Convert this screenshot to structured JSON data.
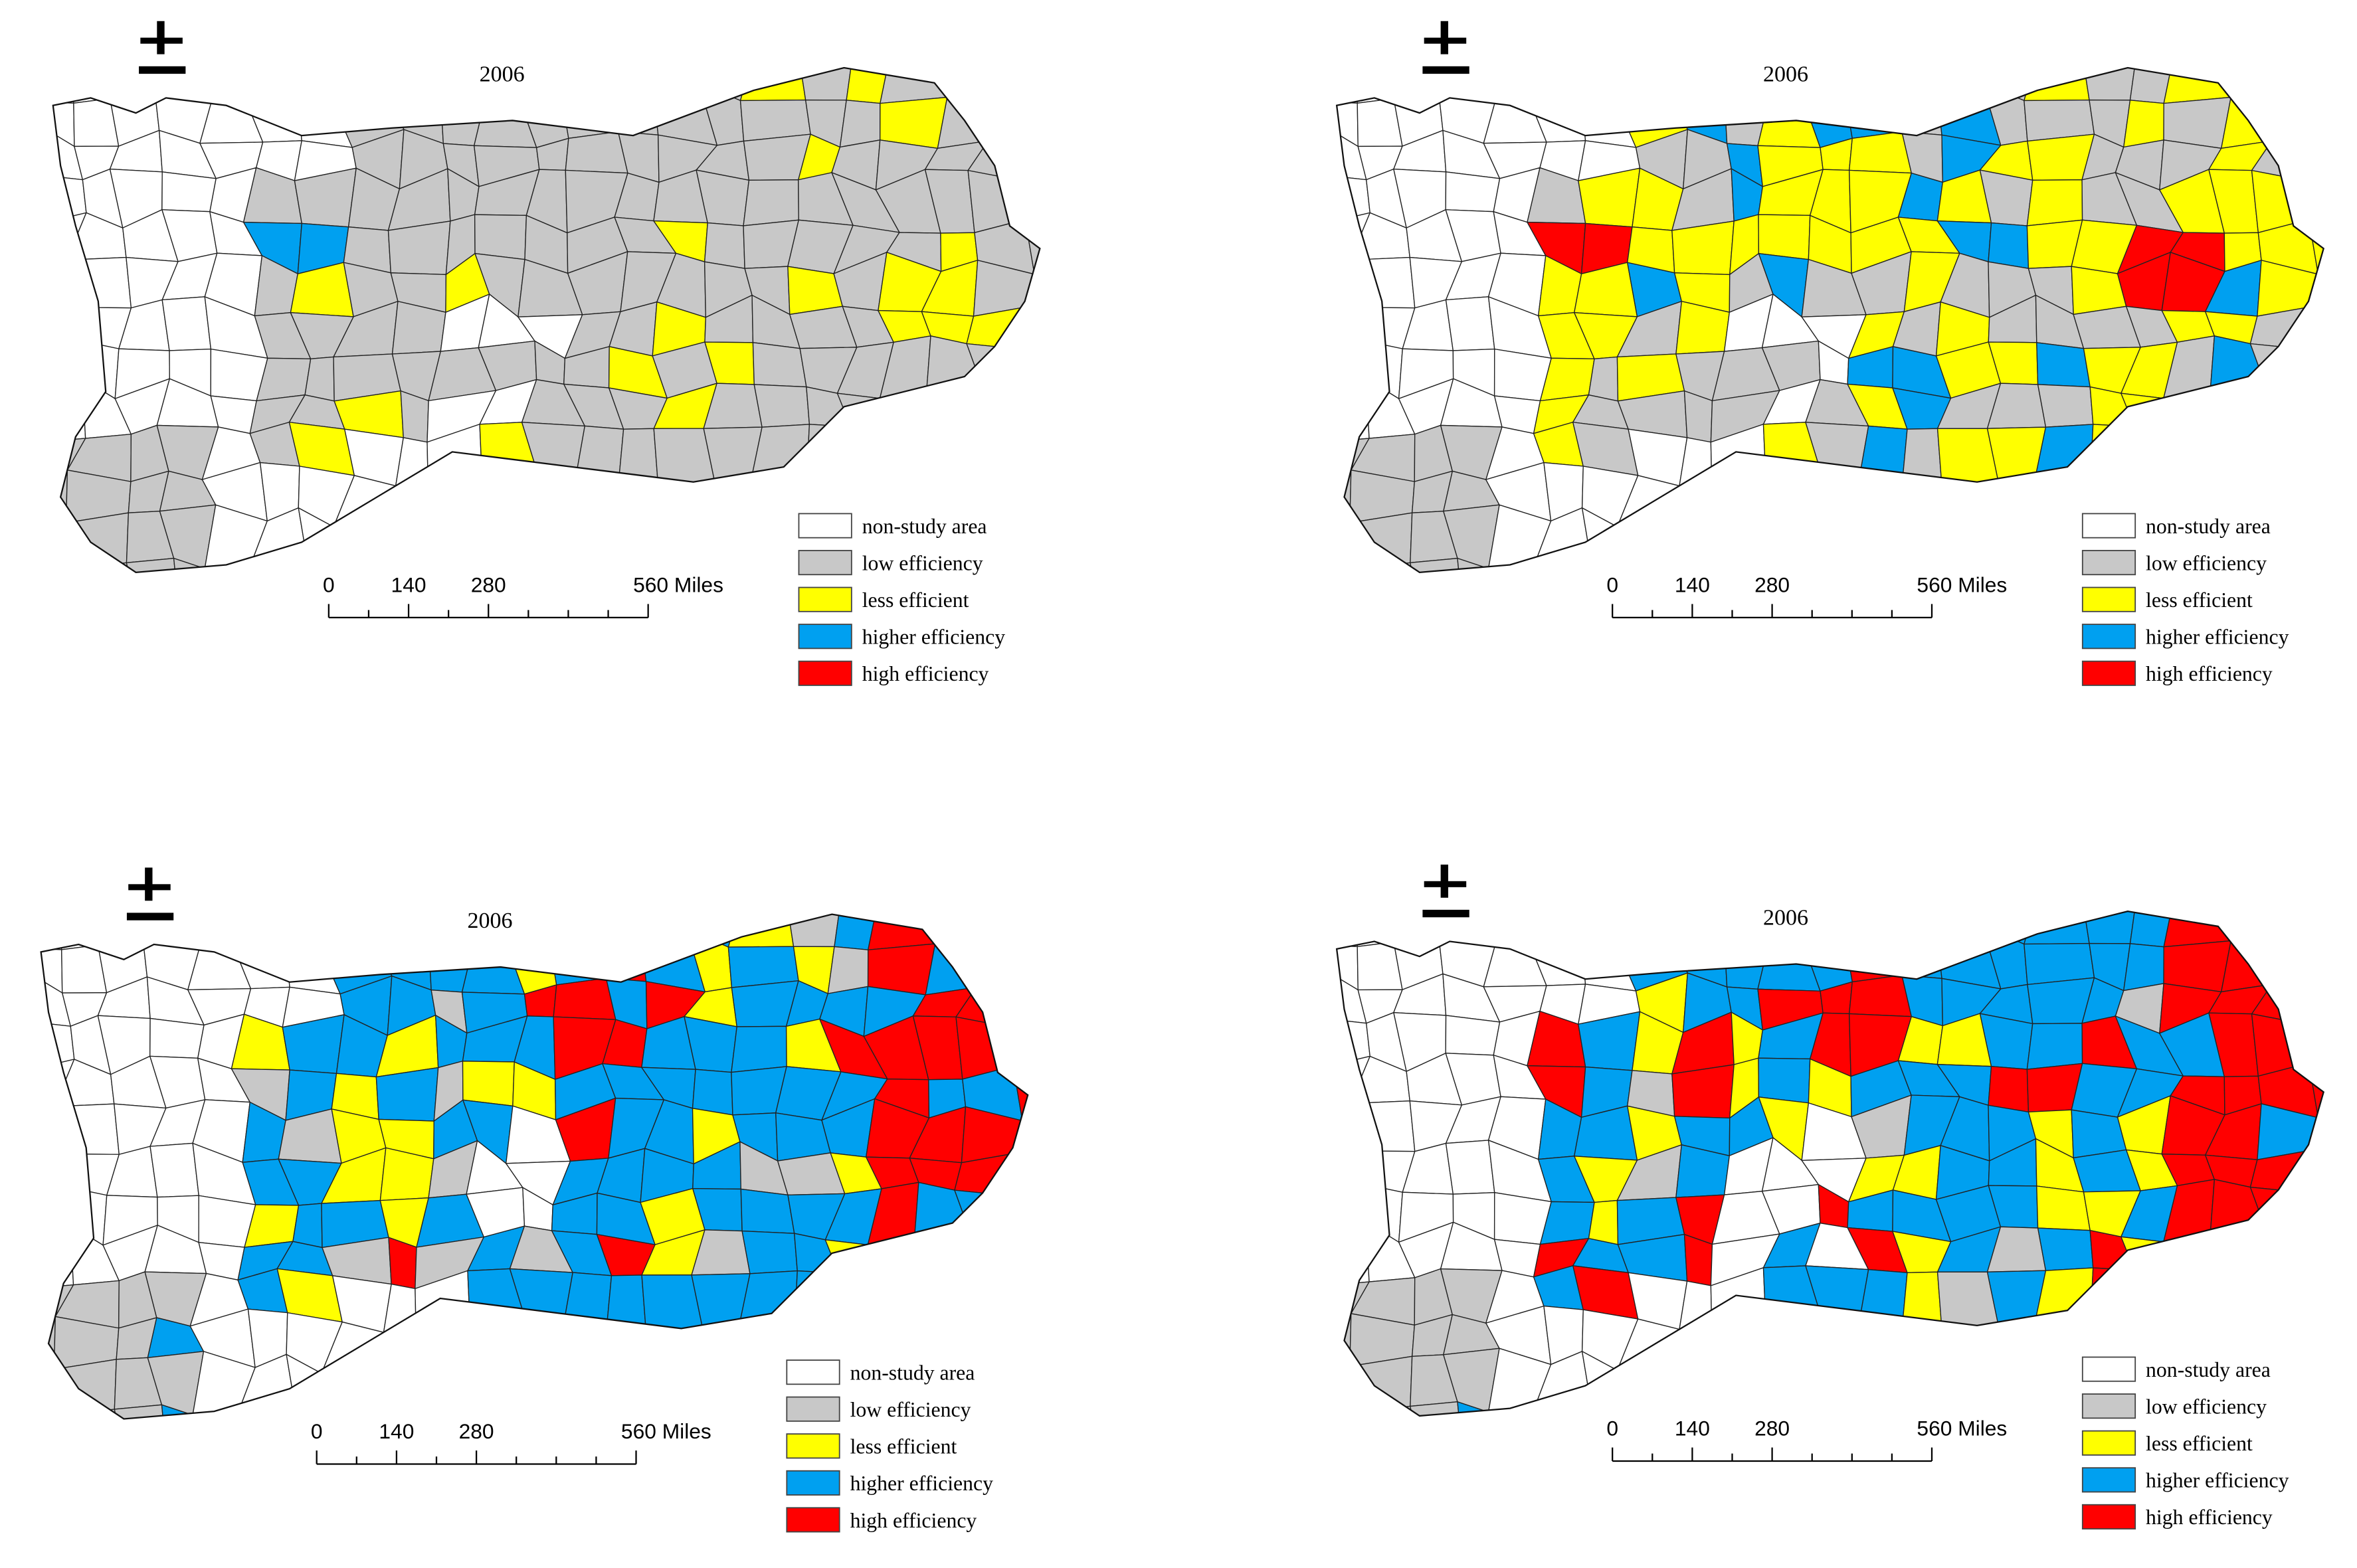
{
  "panels": [
    {
      "year": "2006",
      "legend": [
        "non-study area",
        "low efficiency",
        "less efficient",
        "higher efficiency",
        "high efficiency"
      ],
      "scale": [
        "0",
        "140",
        "280",
        "560 Miles"
      ]
    },
    {
      "year": "2006",
      "legend": [
        "non-study area",
        "low efficiency",
        "less efficient",
        "higher efficiency",
        "high efficiency"
      ],
      "scale": [
        "0",
        "140",
        "280",
        "560 Miles"
      ]
    },
    {
      "year": "2006",
      "legend": [
        "non-study area",
        "low efficiency",
        "less efficient",
        "higher efficiency",
        "high efficiency"
      ],
      "scale": [
        "0",
        "140",
        "280",
        "560 Miles"
      ]
    },
    {
      "year": "2006",
      "legend": [
        "non-study area",
        "low efficiency",
        "less efficient",
        "higher efficiency",
        "high efficiency"
      ],
      "scale": [
        "0",
        "140",
        "280",
        "560 Miles"
      ]
    }
  ]
}
